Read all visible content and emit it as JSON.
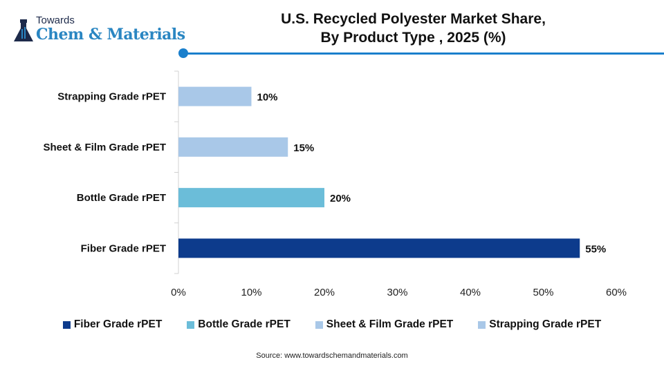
{
  "logo": {
    "top": "Towards",
    "main": "Chem & Materials"
  },
  "title_lines": [
    "U.S. Recycled Polyester Market Share,",
    "By Product Type , 2025 (%)"
  ],
  "source": "Source: www.towardschemandmaterials.com",
  "accent": "#1a7fcc",
  "chart_data": {
    "type": "bar",
    "orientation": "horizontal",
    "title": "U.S. Recycled Polyester Market Share, By Product Type , 2025 (%)",
    "categories": [
      "Strapping Grade rPET",
      "Sheet & Film Grade rPET",
      "Bottle Grade rPET",
      "Fiber Grade rPET"
    ],
    "values": [
      10,
      15,
      20,
      55
    ],
    "data_labels": [
      "10%",
      "15%",
      "20%",
      "55%"
    ],
    "colors": [
      "#a9c8e8",
      "#a9c8e8",
      "#6bbdd9",
      "#0d3b8c"
    ],
    "xlim": [
      0,
      60
    ],
    "xticks": [
      "0%",
      "10%",
      "20%",
      "30%",
      "40%",
      "50%",
      "60%"
    ],
    "grid": false,
    "legend_position": "bottom",
    "legend": [
      {
        "label": "Fiber Grade rPET",
        "color": "#0d3b8c"
      },
      {
        "label": "Bottle Grade rPET",
        "color": "#6bbdd9"
      },
      {
        "label": "Sheet & Film Grade rPET",
        "color": "#a9c8e8"
      },
      {
        "label": "Strapping Grade rPET",
        "color": "#a9c8e8"
      }
    ]
  }
}
